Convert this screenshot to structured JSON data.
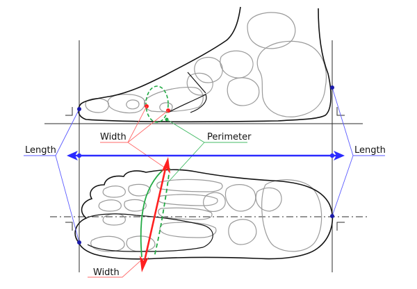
{
  "labels": {
    "width_side": "Width",
    "perimeter": "Perimeter",
    "length_left": "Length",
    "length_right": "Length",
    "width_bottom": "Width"
  },
  "colors": {
    "outline": "#111111",
    "bone": "#9a9a9a",
    "construction": "#2b2b2b",
    "length": "#2b2bff",
    "length_leader": "#5a5aff",
    "width": "#ff2020",
    "width_leader": "#ff6a6a",
    "perimeter": "#22aa44",
    "perimeter_leader": "#44bb66",
    "point": "#1a1aaa"
  }
}
